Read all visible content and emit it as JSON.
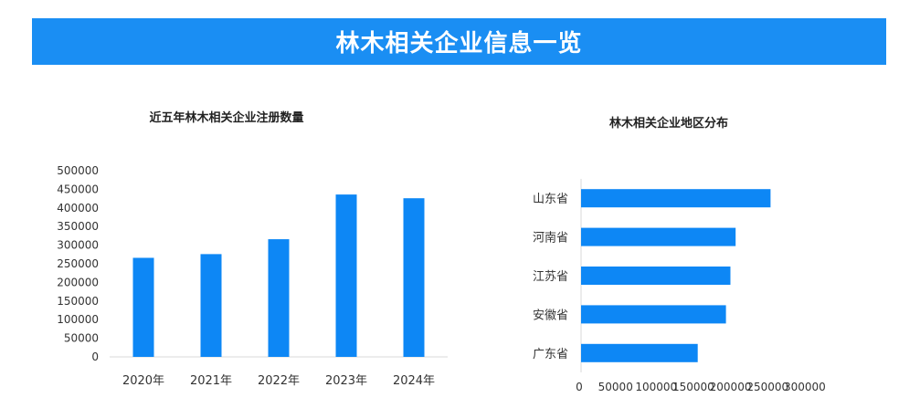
{
  "banner": {
    "title": "林木相关企业信息一览"
  },
  "chart_data": [
    {
      "type": "bar",
      "title": "近五年林木相关企业注册数量",
      "categories": [
        "2020年",
        "2021年",
        "2022年",
        "2023年",
        "2024年"
      ],
      "values": [
        266000,
        276000,
        316000,
        436000,
        426000
      ],
      "ylim": [
        0,
        500000
      ],
      "yticks": [
        "0",
        "50000",
        "100000",
        "150000",
        "200000",
        "250000",
        "300000",
        "350000",
        "400000",
        "450000",
        "500000"
      ],
      "color": "#0d87f5",
      "grid": false
    },
    {
      "type": "bar",
      "orientation": "horizontal",
      "title": "林木相关企业地区分布",
      "categories": [
        "山东省",
        "河南省",
        "江苏省",
        "安徽省",
        "广东省"
      ],
      "values": [
        255000,
        208000,
        201000,
        195000,
        157000
      ],
      "xlim": [
        0,
        300000
      ],
      "xticks": [
        "0",
        "50000",
        "100000",
        "150000",
        "200000",
        "250000",
        "300000"
      ],
      "color": "#0d87f5",
      "grid": false
    }
  ]
}
